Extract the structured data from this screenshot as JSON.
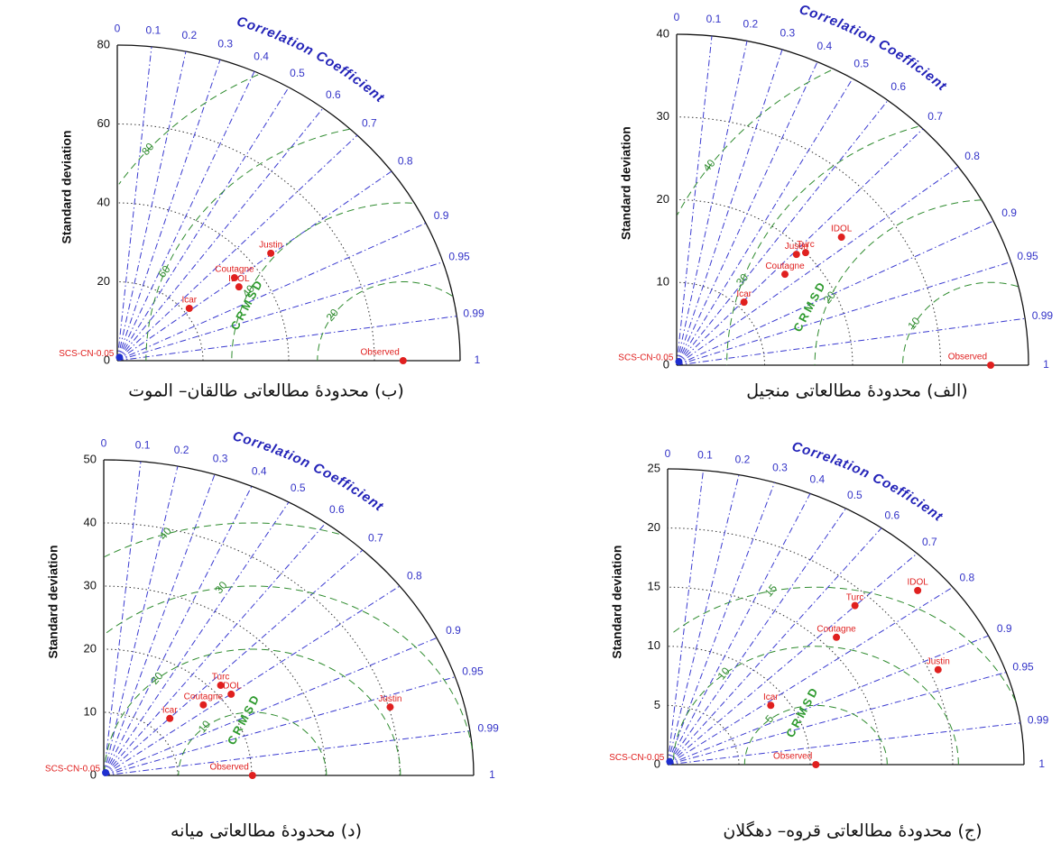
{
  "chart_data": [
    {
      "type": "taylor",
      "caption": "(الف) محدودۀ مطالعاتی منجیل",
      "ylabel": "Standard deviation",
      "corr_label": "Correlation Coefficient",
      "rmsd_label": "CRMSD",
      "ylim": [
        0,
        40
      ],
      "yticks": [
        0,
        10,
        20,
        30,
        40
      ],
      "corr_ticks": [
        0,
        0.1,
        0.2,
        0.3,
        0.4,
        0.5,
        0.6,
        0.7,
        0.8,
        0.9,
        0.95,
        0.99,
        1
      ],
      "rmsd_ticks": [
        10,
        20,
        30,
        40
      ],
      "points": [
        {
          "name": "Observed",
          "std": 35.7,
          "corr": 1,
          "color": "#e0201f"
        },
        {
          "name": "IDOL",
          "std": 24.3,
          "corr": 0.771,
          "color": "#e0201f"
        },
        {
          "name": "Turc",
          "std": 20.0,
          "corr": 0.733,
          "color": "#e0201f"
        },
        {
          "name": "Justin",
          "std": 19.1,
          "corr": 0.713,
          "color": "#e0201f"
        },
        {
          "name": "Coutagne",
          "std": 16.5,
          "corr": 0.746,
          "color": "#e0201f"
        },
        {
          "name": "Icar",
          "std": 10.8,
          "corr": 0.709,
          "color": "#e0201f"
        },
        {
          "name": "SCS-CN-0.05",
          "std": 0.5,
          "corr": 0.5,
          "color": "#1f2fd0"
        }
      ]
    },
    {
      "type": "taylor",
      "caption": "(ب) محدودۀ مطالعاتی طالقان– الموت",
      "ylabel": "Standard deviation",
      "corr_label": "Correlation Coefficient",
      "rmsd_label": "CRMSD",
      "ylim": [
        0,
        80
      ],
      "yticks": [
        0,
        20,
        40,
        60,
        80
      ],
      "corr_ticks": [
        0,
        0.1,
        0.2,
        0.3,
        0.4,
        0.5,
        0.6,
        0.7,
        0.8,
        0.9,
        0.95,
        0.99,
        1
      ],
      "rmsd_ticks": [
        20,
        40,
        60,
        80
      ],
      "points": [
        {
          "name": "Observed",
          "std": 66.7,
          "corr": 1,
          "color": "#e0201f"
        },
        {
          "name": "Justin",
          "std": 45.0,
          "corr": 0.796,
          "color": "#e0201f"
        },
        {
          "name": "Coutagne",
          "std": 34.5,
          "corr": 0.793,
          "color": "#e0201f"
        },
        {
          "name": "IDOL",
          "std": 34.0,
          "corr": 0.835,
          "color": "#e0201f"
        },
        {
          "name": "Icar",
          "std": 21.4,
          "corr": 0.785,
          "color": "#e0201f"
        },
        {
          "name": "SCS-CN-0.05",
          "std": 1,
          "corr": 0.5,
          "color": "#1f2fd0"
        }
      ]
    },
    {
      "type": "taylor",
      "caption": "(ج) محدودۀ مطالعاتی قروه– دهگلان",
      "ylabel": "Standard deviation",
      "corr_label": "Correlation Coefficient",
      "rmsd_label": "CRMSD",
      "ylim": [
        0,
        25
      ],
      "yticks": [
        0,
        5,
        10,
        15,
        20,
        25
      ],
      "corr_ticks": [
        0,
        0.1,
        0.2,
        0.3,
        0.4,
        0.5,
        0.6,
        0.7,
        0.8,
        0.9,
        0.95,
        0.99,
        1
      ],
      "rmsd_ticks": [
        5,
        10,
        15
      ],
      "points": [
        {
          "name": "Observed",
          "std": 10.4,
          "corr": 1,
          "color": "#e0201f"
        },
        {
          "name": "IDOL",
          "std": 22.9,
          "corr": 0.766,
          "color": "#e0201f"
        },
        {
          "name": "Turc",
          "std": 18.8,
          "corr": 0.699,
          "color": "#e0201f"
        },
        {
          "name": "Coutagne",
          "std": 16.0,
          "corr": 0.74,
          "color": "#e0201f"
        },
        {
          "name": "Justin",
          "std": 20.6,
          "corr": 0.921,
          "color": "#e0201f"
        },
        {
          "name": "Icar",
          "std": 8.8,
          "corr": 0.822,
          "color": "#e0201f"
        },
        {
          "name": "SCS-CN-0.05",
          "std": 0.3,
          "corr": 0.5,
          "color": "#1f2fd0"
        }
      ]
    },
    {
      "type": "taylor",
      "caption": "(د) محدودۀ مطالعاتی میانه",
      "ylabel": "Standard deviation",
      "corr_label": "Correlation Coefficient",
      "rmsd_label": "CRMSD",
      "ylim": [
        0,
        50
      ],
      "yticks": [
        0,
        10,
        20,
        30,
        40,
        50
      ],
      "corr_ticks": [
        0,
        0.1,
        0.2,
        0.3,
        0.4,
        0.5,
        0.6,
        0.7,
        0.8,
        0.9,
        0.95,
        0.99,
        1
      ],
      "rmsd_ticks": [
        10,
        20,
        30,
        40
      ],
      "points": [
        {
          "name": "Observed",
          "std": 20.1,
          "corr": 1,
          "color": "#e0201f"
        },
        {
          "name": "Justin",
          "std": 40.2,
          "corr": 0.963,
          "color": "#e0201f"
        },
        {
          "name": "Turc",
          "std": 21.3,
          "corr": 0.742,
          "color": "#e0201f"
        },
        {
          "name": "IDOL",
          "std": 21.5,
          "corr": 0.801,
          "color": "#e0201f"
        },
        {
          "name": "Coutagne",
          "std": 17.5,
          "corr": 0.769,
          "color": "#e0201f"
        },
        {
          "name": "Icar",
          "std": 12.7,
          "corr": 0.703,
          "color": "#e0201f"
        },
        {
          "name": "SCS-CN-0.05",
          "std": 0.5,
          "corr": 0.5,
          "color": "#1f2fd0"
        }
      ]
    }
  ]
}
